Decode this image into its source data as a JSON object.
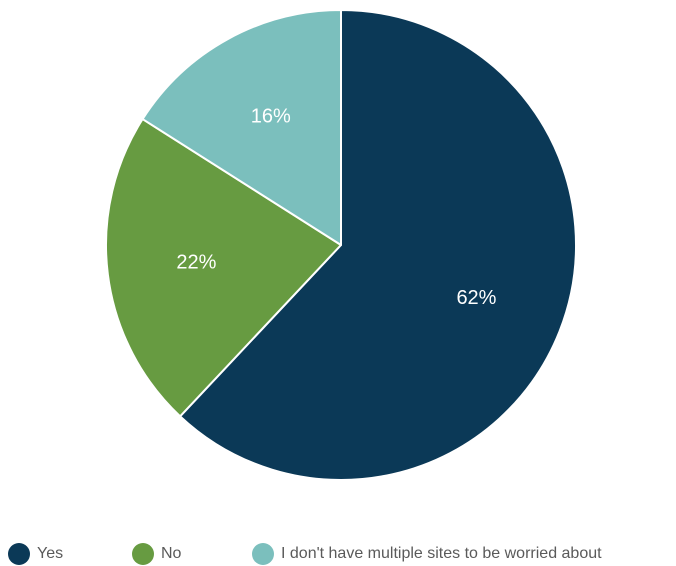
{
  "chart_data": {
    "type": "pie",
    "title": "",
    "slices": [
      {
        "label": "Yes",
        "value": 62,
        "display": "62%",
        "color": "#0b3957"
      },
      {
        "label": "No",
        "value": 22,
        "display": "22%",
        "color": "#679b41"
      },
      {
        "label": "I don't have multiple sites to be worried about",
        "value": 16,
        "display": "16%",
        "color": "#7bbfbd"
      }
    ],
    "start_angle": "12 o'clock",
    "direction": "clockwise",
    "legend_position": "bottom"
  },
  "legend": {
    "items": [
      {
        "label": "Yes",
        "color": "#0b3957"
      },
      {
        "label": "No",
        "color": "#679b41"
      },
      {
        "label": "I don't have multiple sites to be worried about",
        "color": "#7bbfbd"
      }
    ]
  }
}
